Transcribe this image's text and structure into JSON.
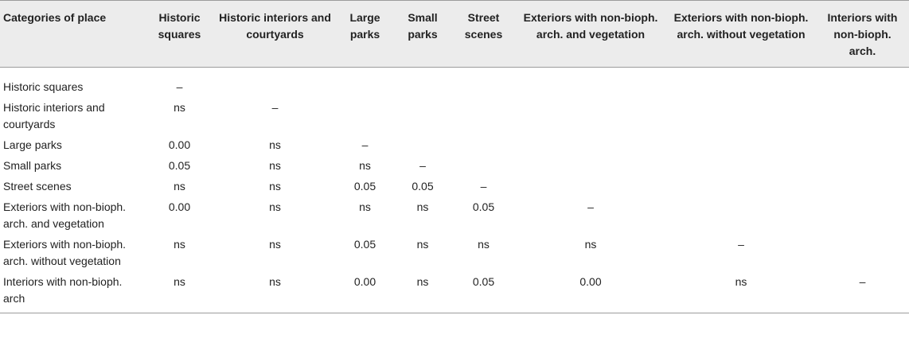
{
  "table": {
    "headers": [
      "Categories of place",
      "Historic squares",
      "Historic interiors and courtyards",
      "Large parks",
      "Small parks",
      "Street scenes",
      "Exteriors with non-bioph. arch. and vegetation",
      "Exteriors with non-bioph. arch. without vegetation",
      "Interiors with non-bioph. arch."
    ],
    "rows": [
      {
        "label": "Historic squares",
        "cells": [
          "–",
          "",
          "",
          "",
          "",
          "",
          "",
          ""
        ]
      },
      {
        "label": "Historic interiors and courtyards",
        "cells": [
          "ns",
          "–",
          "",
          "",
          "",
          "",
          "",
          ""
        ]
      },
      {
        "label": "Large parks",
        "cells": [
          "0.00",
          "ns",
          "–",
          "",
          "",
          "",
          "",
          ""
        ]
      },
      {
        "label": "Small parks",
        "cells": [
          "0.05",
          "ns",
          "ns",
          "–",
          "",
          "",
          "",
          ""
        ]
      },
      {
        "label": "Street scenes",
        "cells": [
          "ns",
          "ns",
          "0.05",
          "0.05",
          "–",
          "",
          "",
          ""
        ]
      },
      {
        "label": "Exteriors with non-bioph. arch. and vegetation",
        "cells": [
          "0.00",
          "ns",
          "ns",
          "ns",
          "0.05",
          "–",
          "",
          ""
        ]
      },
      {
        "label": "Exteriors with non-bioph. arch. without vegetation",
        "cells": [
          "ns",
          "ns",
          "0.05",
          "ns",
          "ns",
          "ns",
          "–",
          ""
        ]
      },
      {
        "label": "Interiors with non-bioph. arch",
        "cells": [
          "ns",
          "ns",
          "0.00",
          "ns",
          "0.05",
          "0.00",
          "ns",
          "–"
        ]
      }
    ]
  }
}
